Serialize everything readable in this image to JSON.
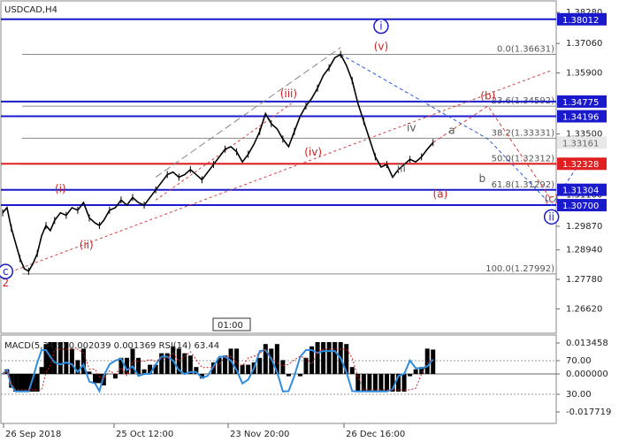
{
  "header": {
    "symbol": "USDCAD,H4"
  },
  "chart_data": {
    "type": "line",
    "symbol": "USDCAD,H4",
    "ylim": [
      1.2566,
      1.387
    ],
    "price_ticks": [
      "1.38280",
      "1.37060",
      "1.35900",
      "1.34680",
      "1.33500",
      "1.32300",
      "1.31100",
      "1.29870",
      "1.28940",
      "1.27780",
      "1.26620"
    ],
    "x_labels": [
      "26 Sep 2018",
      "25 Oct 12:00",
      "23 Nov 20:00",
      "26 Dec 16:00"
    ],
    "time_marker": "01:00",
    "current_price": "1.33161",
    "levels": [
      {
        "value": 1.38012,
        "label": "1.38012",
        "color": "#1a1acc"
      },
      {
        "value": 1.34775,
        "label": "1.34775",
        "color": "#1a1acc"
      },
      {
        "value": 1.34196,
        "label": "1.34196",
        "color": "#1a1acc"
      },
      {
        "value": 1.32328,
        "label": "1.32328",
        "color": "#e02020"
      },
      {
        "value": 1.31304,
        "label": "1.31304",
        "color": "#1a1acc"
      },
      {
        "value": 1.307,
        "label": "1.30700",
        "color": "#1a1acc"
      }
    ],
    "fibonacci": [
      {
        "value": 1.36631,
        "label": "0.0(1.36631)"
      },
      {
        "value": 1.34592,
        "label": "23.6(1.34592)"
      },
      {
        "value": 1.33331,
        "label": "38.2(1.33331)"
      },
      {
        "value": 1.32312,
        "label": "50.0(1.32312)"
      },
      {
        "value": 1.31292,
        "label": "61.8(1.31292)"
      },
      {
        "value": 1.27992,
        "label": "100.0(1.27992)"
      }
    ],
    "price_series": [
      [
        0,
        1.304
      ],
      [
        3,
        1.306
      ],
      [
        6,
        1.298
      ],
      [
        9,
        1.292
      ],
      [
        12,
        1.286
      ],
      [
        15,
        1.282
      ],
      [
        18,
        1.281
      ],
      [
        21,
        1.284
      ],
      [
        24,
        1.288
      ],
      [
        27,
        1.295
      ],
      [
        30,
        1.299
      ],
      [
        33,
        1.297
      ],
      [
        36,
        1.301
      ],
      [
        40,
        1.304
      ],
      [
        44,
        1.303
      ],
      [
        48,
        1.306
      ],
      [
        52,
        1.305
      ],
      [
        56,
        1.308
      ],
      [
        60,
        1.302
      ],
      [
        64,
        1.3
      ],
      [
        67,
        1.299
      ],
      [
        70,
        1.301
      ],
      [
        74,
        1.305
      ],
      [
        78,
        1.306
      ],
      [
        82,
        1.309
      ],
      [
        86,
        1.307
      ],
      [
        90,
        1.31
      ],
      [
        94,
        1.308
      ],
      [
        98,
        1.307
      ],
      [
        102,
        1.31
      ],
      [
        106,
        1.313
      ],
      [
        110,
        1.316
      ],
      [
        114,
        1.319
      ],
      [
        118,
        1.32
      ],
      [
        122,
        1.318
      ],
      [
        126,
        1.319
      ],
      [
        130,
        1.321
      ],
      [
        134,
        1.319
      ],
      [
        138,
        1.317
      ],
      [
        142,
        1.32
      ],
      [
        146,
        1.323
      ],
      [
        150,
        1.326
      ],
      [
        154,
        1.329
      ],
      [
        158,
        1.33
      ],
      [
        162,
        1.328
      ],
      [
        166,
        1.324
      ],
      [
        170,
        1.327
      ],
      [
        174,
        1.331
      ],
      [
        178,
        1.336
      ],
      [
        182,
        1.343
      ],
      [
        186,
        1.339
      ],
      [
        190,
        1.337
      ],
      [
        194,
        1.333
      ],
      [
        198,
        1.33
      ],
      [
        202,
        1.336
      ],
      [
        206,
        1.342
      ],
      [
        210,
        1.346
      ],
      [
        214,
        1.349
      ],
      [
        218,
        1.353
      ],
      [
        222,
        1.358
      ],
      [
        226,
        1.361
      ],
      [
        230,
        1.365
      ],
      [
        234,
        1.3663
      ],
      [
        238,
        1.362
      ],
      [
        242,
        1.356
      ],
      [
        246,
        1.347
      ],
      [
        250,
        1.34
      ],
      [
        254,
        1.333
      ],
      [
        258,
        1.326
      ],
      [
        262,
        1.322
      ],
      [
        266,
        1.323
      ],
      [
        270,
        1.318
      ],
      [
        274,
        1.321
      ],
      [
        278,
        1.323
      ],
      [
        282,
        1.325
      ],
      [
        286,
        1.324
      ],
      [
        290,
        1.326
      ],
      [
        294,
        1.329
      ],
      [
        298,
        1.3316
      ]
    ],
    "wave_labels": [
      {
        "text": "2",
        "x": 2,
        "y": 1.275,
        "style": "red"
      },
      {
        "text": "c",
        "x": 2,
        "y": 1.2795,
        "style": "circle"
      },
      {
        "text": "(i)",
        "x": 40,
        "y": 1.312,
        "style": "red"
      },
      {
        "text": "(ii)",
        "x": 58,
        "y": 1.29,
        "style": "red"
      },
      {
        "text": "(iii)",
        "x": 198,
        "y": 1.3495,
        "style": "red"
      },
      {
        "text": "(iv)",
        "x": 215,
        "y": 1.3265,
        "style": "red"
      },
      {
        "text": "(v)",
        "x": 262,
        "y": 1.368,
        "style": "red"
      },
      {
        "text": "i",
        "x": 262,
        "y": 1.376,
        "style": "circle"
      },
      {
        "text": "iv",
        "x": 283,
        "y": 1.336,
        "style": "gray"
      },
      {
        "text": "iii",
        "x": 276,
        "y": 1.32,
        "style": "gray"
      },
      {
        "text": "a",
        "x": 311,
        "y": 1.335,
        "style": "gray"
      },
      {
        "text": "b",
        "x": 332,
        "y": 1.316,
        "style": "gray"
      },
      {
        "text": "(a)",
        "x": 303,
        "y": 1.31,
        "style": "red"
      },
      {
        "text": "(b)",
        "x": 336,
        "y": 1.3485,
        "style": "red"
      },
      {
        "text": "(c)",
        "x": 380,
        "y": 1.308,
        "style": "red"
      },
      {
        "text": "ii",
        "x": 380,
        "y": 1.301,
        "style": "circle"
      }
    ],
    "macd": {
      "label": "MACD(5,34,5) 0.002039 0.001369 RSI(14) 63.44",
      "ticks": [
        "0.013458",
        "70.00",
        "0.000000",
        "30.00",
        "-0.017719"
      ]
    }
  }
}
